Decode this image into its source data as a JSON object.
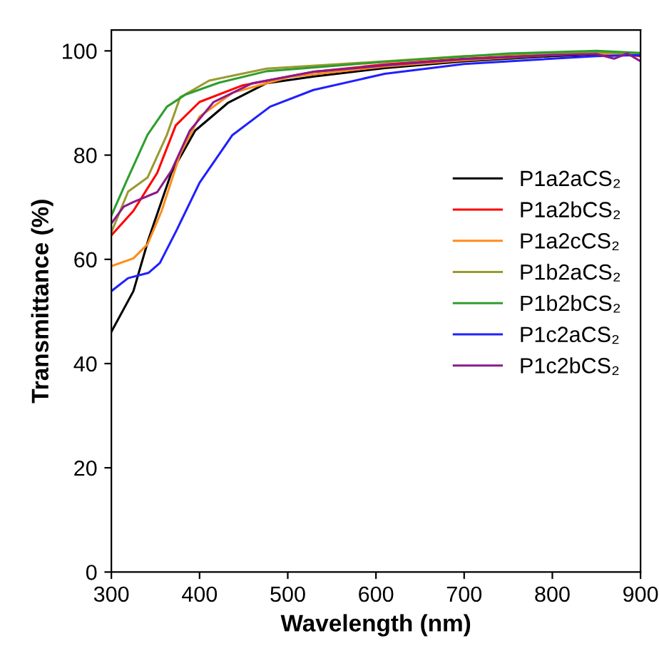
{
  "chart_data": {
    "type": "line",
    "xlabel": "Wavelength (nm)",
    "ylabel": "Transmittance (%)",
    "xlim": [
      300,
      900
    ],
    "ylim": [
      0,
      104
    ],
    "xticks": [
      300,
      400,
      500,
      600,
      700,
      800,
      900
    ],
    "yticks": [
      0,
      20,
      40,
      60,
      80,
      100
    ],
    "grid": false,
    "legend": "right",
    "marker": "none",
    "line_style": "solid",
    "series": [
      {
        "name": "P1a2aCS₂",
        "color": "#000000",
        "x": [
          300,
          325,
          342,
          368,
          395,
          432,
          476,
          530,
          610,
          700,
          800,
          850,
          900
        ],
        "values": [
          46.1,
          53.9,
          63.8,
          76.6,
          84.7,
          90,
          93.8,
          95.1,
          96.7,
          98,
          99,
          99.3,
          99.5
        ]
      },
      {
        "name": "P1a2bCS₂",
        "color": "#ff0000",
        "x": [
          300,
          325,
          352,
          373,
          400,
          449,
          530,
          610,
          700,
          800,
          850,
          900
        ],
        "values": [
          64.6,
          69.3,
          76.6,
          85.7,
          90.2,
          93.4,
          96,
          97.4,
          98.5,
          99.3,
          99.6,
          99
        ]
      },
      {
        "name": "P1a2cCS₂",
        "color": "#ff8c1a",
        "x": [
          300,
          325,
          341,
          357,
          378,
          400,
          438,
          502,
          610,
          700,
          800,
          850,
          900
        ],
        "values": [
          58.7,
          60.2,
          62.9,
          69.3,
          80.2,
          87.4,
          92,
          95,
          97,
          98.2,
          99.2,
          99.5,
          99.3
        ]
      },
      {
        "name": "P1b2aCS₂",
        "color": "#9a9a30",
        "x": [
          300,
          319,
          341,
          363,
          378,
          411,
          476,
          610,
          700,
          800,
          850,
          900
        ],
        "values": [
          65.2,
          73,
          75.7,
          83.9,
          91.1,
          94.3,
          96.6,
          98,
          99,
          99.6,
          99.8,
          99.2
        ]
      },
      {
        "name": "P1b2bCS₂",
        "color": "#2e9e2e",
        "x": [
          300,
          319,
          341,
          363,
          384,
          422,
          476,
          610,
          750,
          850,
          900
        ],
        "values": [
          68.4,
          75.7,
          83.9,
          89.3,
          91.6,
          93.9,
          96.1,
          97.9,
          99.5,
          100,
          99.6
        ]
      },
      {
        "name": "P1c2aCS₂",
        "color": "#2020ff",
        "x": [
          300,
          319,
          342,
          355,
          374,
          400,
          437,
          480,
          529,
          610,
          700,
          850,
          900
        ],
        "values": [
          53.9,
          56.4,
          57.4,
          59.3,
          65.6,
          74.7,
          83.8,
          89.3,
          92.5,
          95.6,
          97.5,
          99,
          99.2
        ]
      },
      {
        "name": "P1c2bCS₂",
        "color": "#8b1a8b",
        "x": [
          300,
          314,
          325,
          352,
          368,
          389,
          416,
          460,
          530,
          610,
          700,
          800,
          850,
          870,
          885,
          900
        ],
        "values": [
          66.9,
          70.1,
          71,
          72.9,
          77,
          84.7,
          90.2,
          93.8,
          96,
          97.2,
          98.4,
          99.2,
          99.4,
          98.5,
          99.5,
          98
        ]
      }
    ]
  }
}
